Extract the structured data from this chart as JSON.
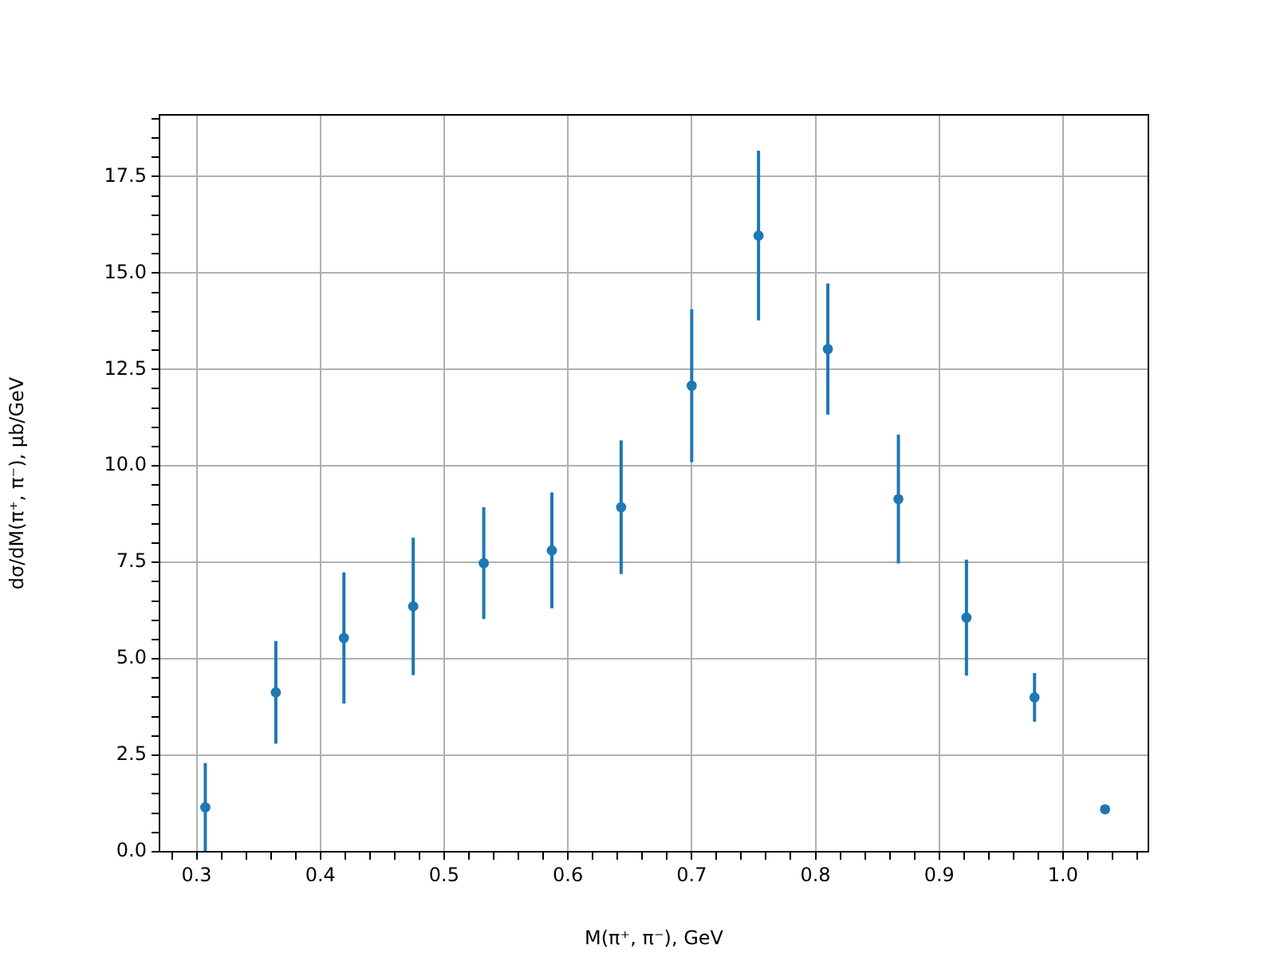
{
  "chart_data": {
    "type": "scatter",
    "xlabel": "M(π⁺, π⁻), GeV",
    "ylabel": "dσ/dM(π⁺, π⁻), μb/GeV",
    "x": [
      0.307,
      0.364,
      0.419,
      0.475,
      0.532,
      0.587,
      0.643,
      0.7,
      0.754,
      0.81,
      0.867,
      0.922,
      0.977,
      1.034
    ],
    "series": [
      {
        "color": "#1f77b4",
        "values": [
          1.15,
          4.13,
          5.54,
          6.36,
          7.48,
          7.81,
          8.93,
          12.08,
          15.97,
          13.03,
          9.14,
          6.07,
          4.0,
          1.1
        ],
        "errors": [
          1.15,
          1.33,
          1.7,
          1.78,
          1.45,
          1.5,
          1.73,
          1.98,
          2.2,
          1.7,
          1.67,
          1.5,
          0.63,
          0.1
        ]
      }
    ],
    "xlim": [
      0.27,
      1.069
    ],
    "ylim": [
      0,
      19.1
    ],
    "xticks": [
      {
        "value": 0.28,
        "label": null
      },
      0.3,
      {
        "value": 0.32,
        "label": null
      },
      {
        "value": 0.34,
        "label": null
      },
      {
        "value": 0.36,
        "label": null
      },
      {
        "value": 0.38,
        "label": null
      },
      0.4,
      {
        "value": 0.42,
        "label": null
      },
      {
        "value": 0.44,
        "label": null
      },
      {
        "value": 0.46,
        "label": null
      },
      {
        "value": 0.48,
        "label": null
      },
      0.5,
      {
        "value": 0.52,
        "label": null
      },
      {
        "value": 0.54,
        "label": null
      },
      {
        "value": 0.56,
        "label": null
      },
      {
        "value": 0.58,
        "label": null
      },
      0.6,
      {
        "value": 0.62,
        "label": null
      },
      {
        "value": 0.64,
        "label": null
      },
      {
        "value": 0.66,
        "label": null
      },
      {
        "value": 0.68,
        "label": null
      },
      0.7,
      {
        "value": 0.72,
        "label": null
      },
      {
        "value": 0.74,
        "label": null
      },
      {
        "value": 0.76,
        "label": null
      },
      {
        "value": 0.78,
        "label": null
      },
      0.8,
      {
        "value": 0.82,
        "label": null
      },
      {
        "value": 0.84,
        "label": null
      },
      {
        "value": 0.86,
        "label": null
      },
      {
        "value": 0.88,
        "label": null
      },
      0.9,
      {
        "value": 0.92,
        "label": null
      },
      {
        "value": 0.94,
        "label": null
      },
      {
        "value": 0.96,
        "label": null
      },
      {
        "value": 0.98,
        "label": null
      },
      {
        "value": 1.0,
        "label": "1.0"
      },
      {
        "value": 1.02,
        "label": null
      },
      {
        "value": 1.04,
        "label": null
      },
      {
        "value": 1.06,
        "label": null
      }
    ],
    "yticks": [
      {
        "value": 0,
        "label": "0.0"
      },
      {
        "value": 0.5,
        "label": null
      },
      {
        "value": 1,
        "label": null
      },
      {
        "value": 1.5,
        "label": null
      },
      {
        "value": 2,
        "label": null
      },
      2.5,
      {
        "value": 3,
        "label": null
      },
      {
        "value": 3.5,
        "label": null
      },
      {
        "value": 4,
        "label": null
      },
      {
        "value": 4.5,
        "label": null
      },
      {
        "value": 5,
        "label": "5.0"
      },
      {
        "value": 5.5,
        "label": null
      },
      {
        "value": 6,
        "label": null
      },
      {
        "value": 6.5,
        "label": null
      },
      {
        "value": 7,
        "label": null
      },
      7.5,
      {
        "value": 8,
        "label": null
      },
      {
        "value": 8.5,
        "label": null
      },
      {
        "value": 9,
        "label": null
      },
      {
        "value": 9.5,
        "label": null
      },
      {
        "value": 10,
        "label": "10.0"
      },
      {
        "value": 10.5,
        "label": null
      },
      {
        "value": 11,
        "label": null
      },
      {
        "value": 11.5,
        "label": null
      },
      {
        "value": 12,
        "label": null
      },
      12.5,
      {
        "value": 13,
        "label": null
      },
      {
        "value": 13.5,
        "label": null
      },
      {
        "value": 14,
        "label": null
      },
      {
        "value": 14.5,
        "label": null
      },
      {
        "value": 15,
        "label": "15.0"
      },
      {
        "value": 15.5,
        "label": null
      },
      {
        "value": 16,
        "label": null
      },
      {
        "value": 16.5,
        "label": null
      },
      {
        "value": 17,
        "label": null
      },
      17.5,
      {
        "value": 18,
        "label": null
      },
      {
        "value": 18.5,
        "label": null
      },
      {
        "value": 19,
        "label": null
      }
    ],
    "grid": true,
    "marker": "circle",
    "legend": false
  }
}
